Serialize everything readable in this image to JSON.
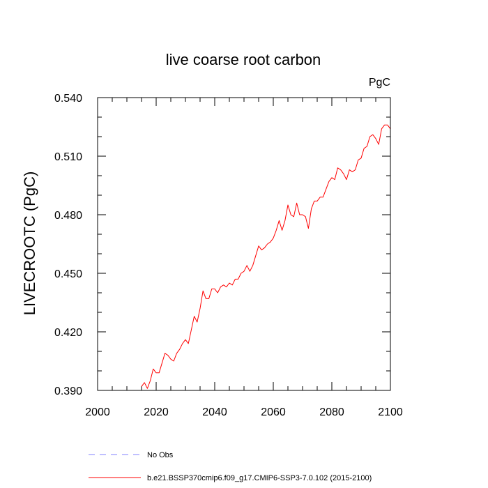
{
  "chart_data": {
    "type": "line",
    "title": "live coarse root carbon",
    "units_label": "PgC",
    "xlabel": "",
    "ylabel": "LIVECROOTC  (PgC)",
    "xlim": [
      2000,
      2100
    ],
    "ylim": [
      0.39,
      0.54
    ],
    "x_ticks": [
      "2000",
      "2020",
      "2040",
      "2060",
      "2080",
      "2100"
    ],
    "y_ticks": [
      "0.390",
      "0.420",
      "0.450",
      "0.480",
      "0.510",
      "0.540"
    ],
    "series": [
      {
        "name": "b.e21.BSSP370cmip6.f09_g17.CMIP6-SSP3-7.0.102 (2015-2100)",
        "color": "#ff0000",
        "style": "solid",
        "x": [
          2015,
          2016,
          2017,
          2018,
          2019,
          2020,
          2021,
          2022,
          2023,
          2024,
          2025,
          2026,
          2027,
          2028,
          2029,
          2030,
          2031,
          2032,
          2033,
          2034,
          2035,
          2036,
          2037,
          2038,
          2039,
          2040,
          2041,
          2042,
          2043,
          2044,
          2045,
          2046,
          2047,
          2048,
          2049,
          2050,
          2051,
          2052,
          2053,
          2054,
          2055,
          2056,
          2057,
          2058,
          2059,
          2060,
          2061,
          2062,
          2063,
          2064,
          2065,
          2066,
          2067,
          2068,
          2069,
          2070,
          2071,
          2072,
          2073,
          2074,
          2075,
          2076,
          2077,
          2078,
          2079,
          2080,
          2081,
          2082,
          2083,
          2084,
          2085,
          2086,
          2087,
          2088,
          2089,
          2090,
          2091,
          2092,
          2093,
          2094,
          2095,
          2096,
          2097,
          2098,
          2099,
          2100
        ],
        "values": [
          0.392,
          0.394,
          0.391,
          0.395,
          0.401,
          0.399,
          0.399,
          0.404,
          0.409,
          0.408,
          0.406,
          0.405,
          0.409,
          0.411,
          0.414,
          0.416,
          0.414,
          0.421,
          0.428,
          0.425,
          0.432,
          0.441,
          0.437,
          0.437,
          0.442,
          0.442,
          0.44,
          0.443,
          0.444,
          0.443,
          0.445,
          0.444,
          0.447,
          0.447,
          0.45,
          0.451,
          0.454,
          0.451,
          0.454,
          0.459,
          0.464,
          0.462,
          0.463,
          0.465,
          0.466,
          0.468,
          0.472,
          0.477,
          0.472,
          0.477,
          0.485,
          0.48,
          0.479,
          0.486,
          0.48,
          0.48,
          0.479,
          0.473,
          0.483,
          0.487,
          0.487,
          0.489,
          0.489,
          0.493,
          0.497,
          0.499,
          0.498,
          0.504,
          0.503,
          0.501,
          0.498,
          0.503,
          0.502,
          0.503,
          0.508,
          0.509,
          0.514,
          0.515,
          0.52,
          0.521,
          0.519,
          0.516,
          0.524,
          0.526,
          0.526,
          0.524
        ]
      }
    ],
    "legend": [
      {
        "label": "No Obs",
        "color": "#8080ff",
        "style": "dashed"
      },
      {
        "label": "b.e21.BSSP370cmip6.f09_g17.CMIP6-SSP3-7.0.102 (2015-2100)",
        "color": "#ff0000",
        "style": "solid"
      }
    ],
    "grid": false,
    "legend_placement": "bottom"
  }
}
